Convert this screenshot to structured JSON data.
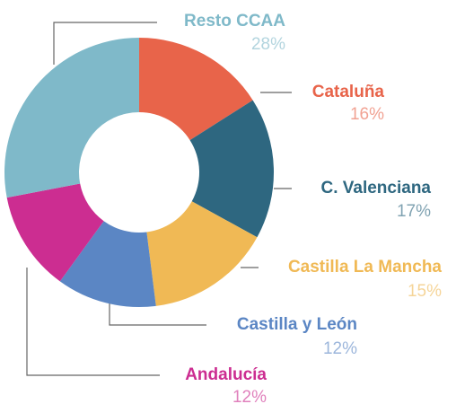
{
  "chart_data": {
    "type": "pie",
    "donut": true,
    "categories": [
      "Cataluña",
      "C. Valenciana",
      "Castilla La Mancha",
      "Castilla y León",
      "Andalucía",
      "Resto CCAA"
    ],
    "values": [
      16,
      17,
      15,
      12,
      12,
      28
    ],
    "value_labels": [
      "16%",
      "17%",
      "15%",
      "12%",
      "12%",
      "28%"
    ],
    "colors": [
      "#e8644a",
      "#2e6780",
      "#f0b955",
      "#5b86c4",
      "#cc2d91",
      "#7fb9c9"
    ]
  }
}
